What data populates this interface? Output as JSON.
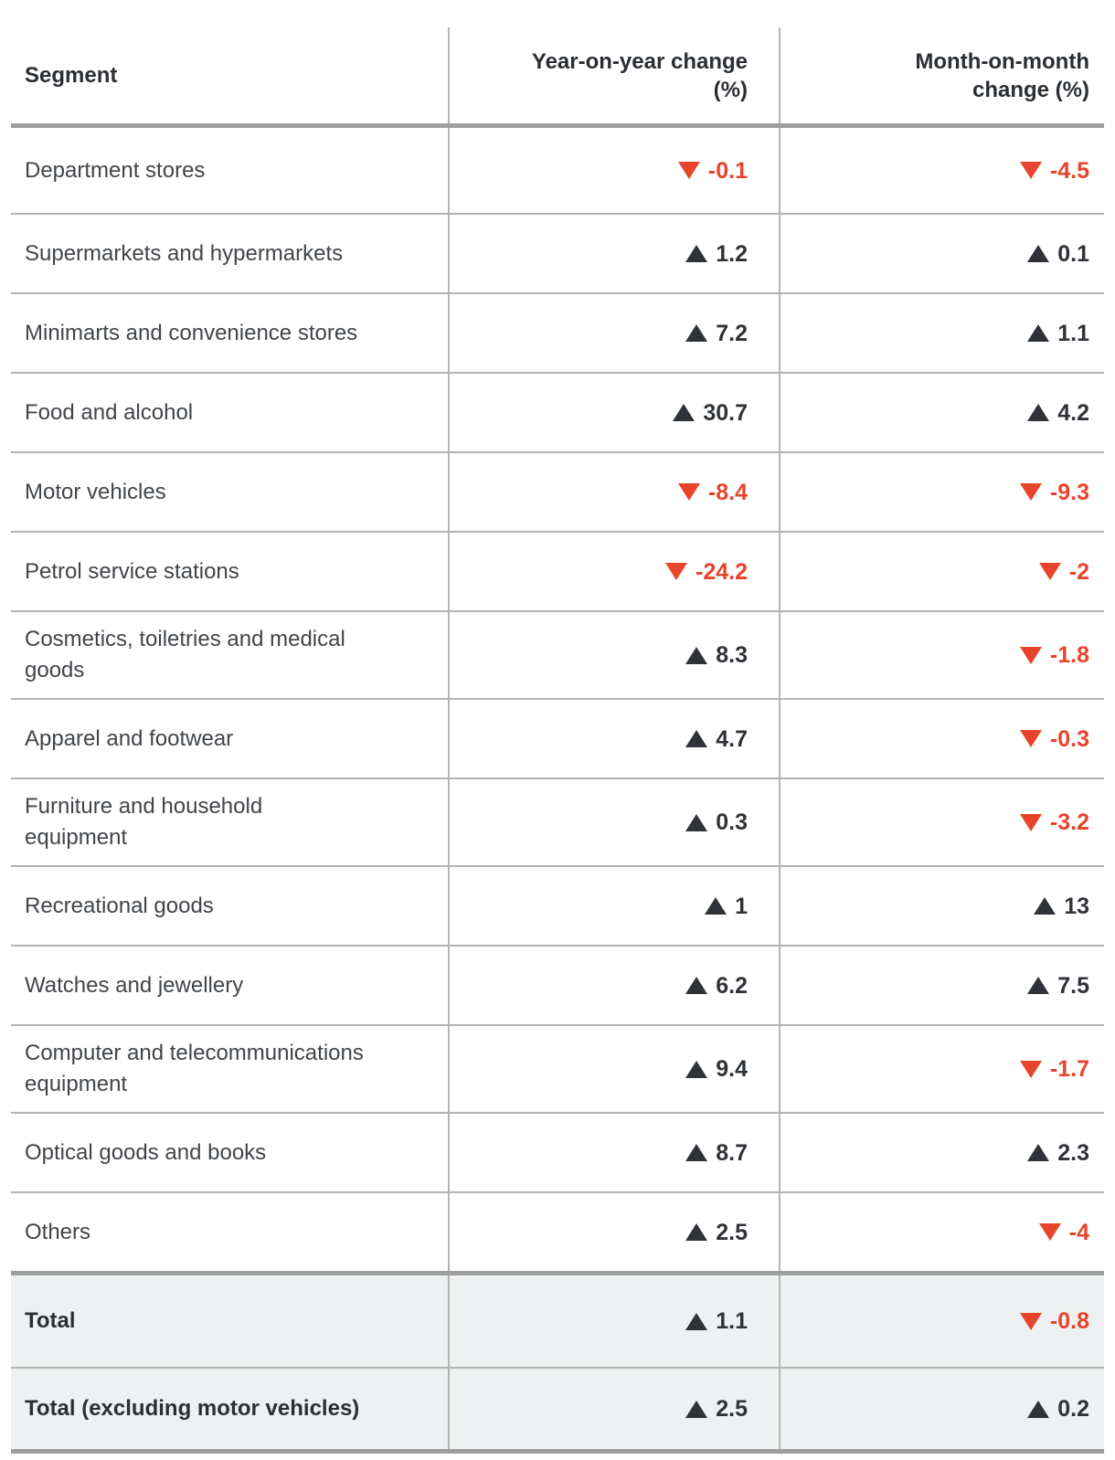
{
  "colors": {
    "negative": "#e8432b",
    "positive": "#2f3338",
    "header_text": "#2b2f33",
    "body_text": "#414549",
    "total_row_background": "#eef1f1",
    "thin_rule": "#b3b3b3",
    "thick_rule": "#9e9e9e",
    "vertical_rule": "#b5b5b5"
  },
  "icons": {
    "up": "triangle-up-icon",
    "down": "triangle-down-icon"
  },
  "chart_data": {
    "type": "table",
    "columns": [
      {
        "label": "Segment",
        "lines": [
          "Segment"
        ]
      },
      {
        "label": "Year-on-year change (%)",
        "lines": [
          "Year-on-year change",
          "(%)"
        ]
      },
      {
        "label": "Month-on-month change (%)",
        "lines": [
          "Month-on-month",
          "change (%)"
        ]
      }
    ],
    "rows": [
      {
        "segment": "Department stores",
        "lines": [
          "Department stores"
        ],
        "yoy": {
          "value": -0.1,
          "display": "-0.1",
          "direction": "down"
        },
        "mom": {
          "value": -4.5,
          "display": "-4.5",
          "direction": "down"
        }
      },
      {
        "segment": "Supermarkets and hypermarkets",
        "lines": [
          "Supermarkets and hypermarkets"
        ],
        "yoy": {
          "value": 1.2,
          "display": "1.2",
          "direction": "up"
        },
        "mom": {
          "value": 0.1,
          "display": "0.1",
          "direction": "up"
        }
      },
      {
        "segment": "Minimarts and convenience stores",
        "lines": [
          "Minimarts and convenience stores"
        ],
        "yoy": {
          "value": 7.2,
          "display": "7.2",
          "direction": "up"
        },
        "mom": {
          "value": 1.1,
          "display": "1.1",
          "direction": "up"
        }
      },
      {
        "segment": "Food and alcohol",
        "lines": [
          "Food and alcohol"
        ],
        "yoy": {
          "value": 30.7,
          "display": "30.7",
          "direction": "up"
        },
        "mom": {
          "value": 4.2,
          "display": "4.2",
          "direction": "up"
        }
      },
      {
        "segment": "Motor vehicles",
        "lines": [
          "Motor vehicles"
        ],
        "yoy": {
          "value": -8.4,
          "display": "-8.4",
          "direction": "down"
        },
        "mom": {
          "value": -9.3,
          "display": "-9.3",
          "direction": "down"
        }
      },
      {
        "segment": "Petrol service stations",
        "lines": [
          "Petrol service stations"
        ],
        "yoy": {
          "value": -24.2,
          "display": "-24.2",
          "direction": "down"
        },
        "mom": {
          "value": -2,
          "display": "-2",
          "direction": "down"
        }
      },
      {
        "segment": "Cosmetics, toiletries and medical goods",
        "lines": [
          "Cosmetics, toiletries and medical",
          "goods"
        ],
        "yoy": {
          "value": 8.3,
          "display": "8.3",
          "direction": "up"
        },
        "mom": {
          "value": -1.8,
          "display": "-1.8",
          "direction": "down"
        }
      },
      {
        "segment": "Apparel and footwear",
        "lines": [
          "Apparel and footwear"
        ],
        "yoy": {
          "value": 4.7,
          "display": "4.7",
          "direction": "up"
        },
        "mom": {
          "value": -0.3,
          "display": "-0.3",
          "direction": "down"
        }
      },
      {
        "segment": "Furniture and household equipment",
        "lines": [
          "Furniture and household",
          "equipment"
        ],
        "yoy": {
          "value": 0.3,
          "display": "0.3",
          "direction": "up"
        },
        "mom": {
          "value": -3.2,
          "display": "-3.2",
          "direction": "down"
        }
      },
      {
        "segment": "Recreational goods",
        "lines": [
          "Recreational goods"
        ],
        "yoy": {
          "value": 1,
          "display": "1",
          "direction": "up"
        },
        "mom": {
          "value": 13,
          "display": "13",
          "direction": "up"
        }
      },
      {
        "segment": "Watches and jewellery",
        "lines": [
          "Watches and jewellery"
        ],
        "yoy": {
          "value": 6.2,
          "display": "6.2",
          "direction": "up"
        },
        "mom": {
          "value": 7.5,
          "display": "7.5",
          "direction": "up"
        }
      },
      {
        "segment": "Computer and telecommunications equipment",
        "lines": [
          "Computer and telecommunications",
          "equipment"
        ],
        "yoy": {
          "value": 9.4,
          "display": "9.4",
          "direction": "up"
        },
        "mom": {
          "value": -1.7,
          "display": "-1.7",
          "direction": "down"
        }
      },
      {
        "segment": "Optical goods and books",
        "lines": [
          "Optical goods and books"
        ],
        "yoy": {
          "value": 8.7,
          "display": "8.7",
          "direction": "up"
        },
        "mom": {
          "value": 2.3,
          "display": "2.3",
          "direction": "up"
        }
      },
      {
        "segment": "Others",
        "lines": [
          "Others"
        ],
        "yoy": {
          "value": 2.5,
          "display": "2.5",
          "direction": "up"
        },
        "mom": {
          "value": -4,
          "display": "-4",
          "direction": "down"
        }
      }
    ],
    "totals": [
      {
        "segment": "Total",
        "lines": [
          "Total"
        ],
        "yoy": {
          "value": 1.1,
          "display": "1.1",
          "direction": "up"
        },
        "mom": {
          "value": -0.8,
          "display": "-0.8",
          "direction": "down"
        }
      },
      {
        "segment": "Total (excluding motor vehicles)",
        "lines": [
          "Total (excluding motor vehicles)"
        ],
        "yoy": {
          "value": 2.5,
          "display": "2.5",
          "direction": "up"
        },
        "mom": {
          "value": 0.2,
          "display": "0.2",
          "direction": "up"
        }
      }
    ]
  }
}
